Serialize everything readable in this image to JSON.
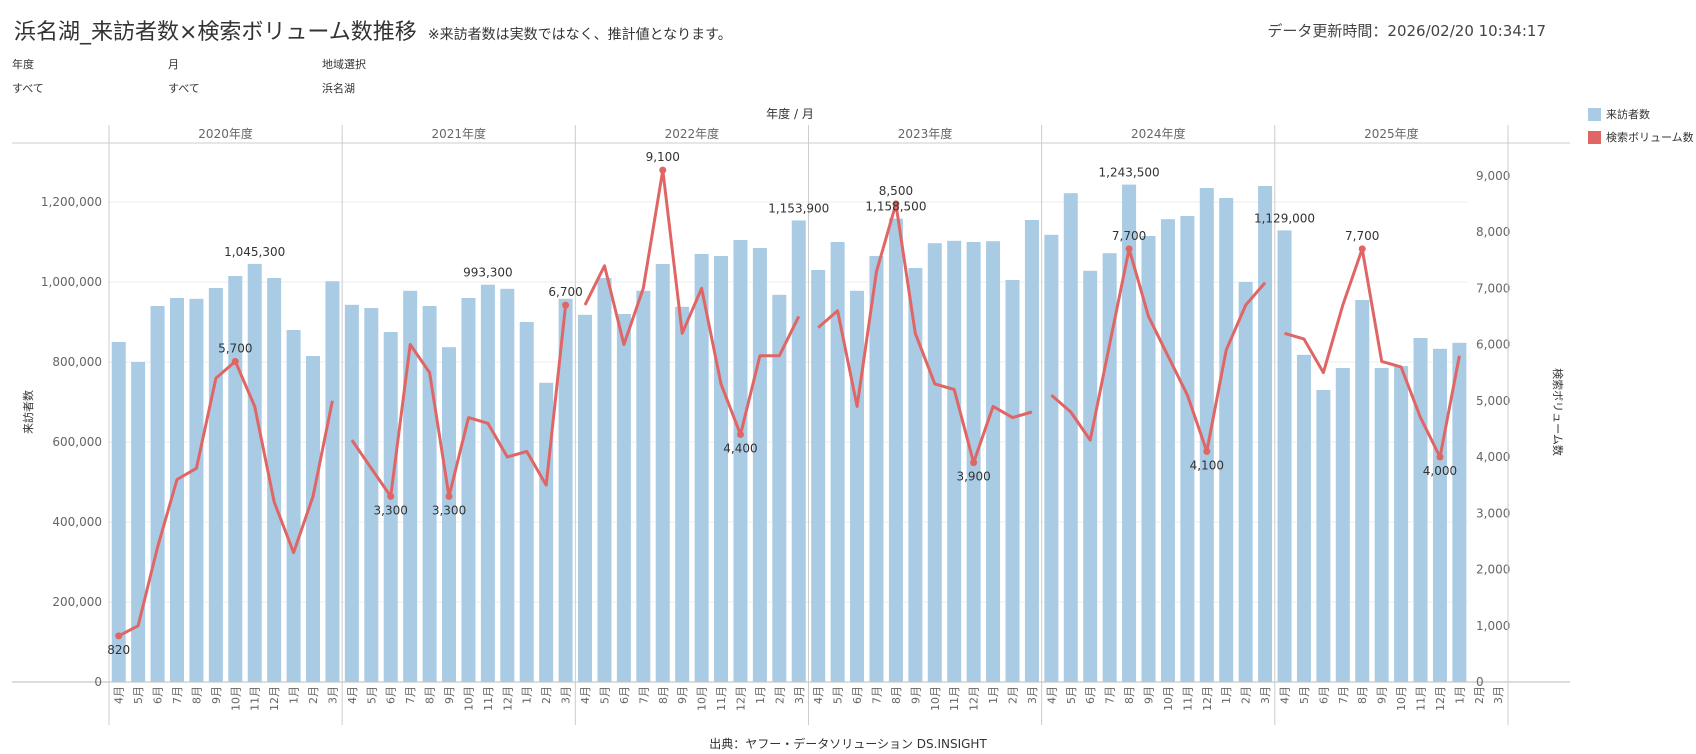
{
  "header": {
    "title": "浜名湖_来訪者数×検索ボリューム数推移",
    "note": "※来訪者数は実数ではなく、推計値となります。",
    "updated_label": "データ更新時間：",
    "updated_value": "2026/02/20 10:34:17"
  },
  "filters": [
    {
      "label": "年度",
      "value": "すべて"
    },
    {
      "label": "月",
      "value": "すべて"
    },
    {
      "label": "地域選択",
      "value": "浜名湖"
    }
  ],
  "legend": [
    {
      "label": "来訪者数",
      "color": "#a9cbe4"
    },
    {
      "label": "検索ボリューム数",
      "color": "#e06666"
    }
  ],
  "source": "出典：ヤフー・データソリューション DS.INSIGHT",
  "chart_data": {
    "type": "bar+line",
    "header_label": "年度 / 月",
    "groups": [
      "2020年度",
      "2021年度",
      "2022年度",
      "2023年度",
      "2024年度",
      "2025年度"
    ],
    "months": [
      "4月",
      "5月",
      "6月",
      "7月",
      "8月",
      "9月",
      "10月",
      "11月",
      "12月",
      "1月",
      "2月",
      "3月"
    ],
    "y_left": {
      "label": "来訪者数",
      "range": [
        0,
        1350000
      ],
      "ticks": [
        0,
        200000,
        400000,
        600000,
        800000,
        1000000,
        1200000
      ],
      "tick_labels": [
        "0",
        "200,000",
        "400,000",
        "600,000",
        "800,000",
        "1,000,000",
        "1,200,000"
      ]
    },
    "y_right": {
      "label": "検索ボリューム数",
      "range": [
        0,
        9600
      ],
      "ticks": [
        0,
        1000,
        2000,
        3000,
        4000,
        5000,
        6000,
        7000,
        8000,
        9000
      ],
      "tick_labels": [
        "0",
        "1,000",
        "2,000",
        "3,000",
        "4,000",
        "5,000",
        "6,000",
        "7,000",
        "8,000",
        "9,000"
      ]
    },
    "series": [
      {
        "name": "来訪者数",
        "type": "bar",
        "color": "#a9cbe4",
        "values": [
          [
            850000,
            800000,
            940000,
            960000,
            958000,
            985000,
            1015000,
            1045300,
            1010000,
            880000,
            815000,
            1002000
          ],
          [
            943000,
            935000,
            875000,
            978000,
            940000,
            837000,
            960000,
            993300,
            983000,
            900000,
            748000,
            958000
          ],
          [
            918000,
            1010000,
            920000,
            978000,
            1045000,
            938000,
            1070000,
            1065000,
            1105000,
            1085000,
            968000,
            1153900
          ],
          [
            1030000,
            1100000,
            978000,
            1065000,
            1158500,
            1035000,
            1097000,
            1103000,
            1100000,
            1102000,
            1005000,
            1155000
          ],
          [
            1118000,
            1222000,
            1028000,
            1072000,
            1243500,
            1115000,
            1157000,
            1165000,
            1235000,
            1210000,
            1000000,
            1240000
          ],
          [
            1129000,
            818000,
            730000,
            785000,
            955000,
            785000,
            790000,
            860000,
            833000,
            848000,
            null,
            null
          ]
        ]
      },
      {
        "name": "検索ボリューム数",
        "type": "line",
        "color": "#e06666",
        "values": [
          [
            820,
            1000,
            2400,
            3600,
            3800,
            5400,
            5700,
            4900,
            3200,
            2300,
            3300,
            5000
          ],
          [
            4300,
            3800,
            3300,
            6000,
            5500,
            3300,
            4700,
            4600,
            4000,
            4100,
            3500,
            6700
          ],
          [
            6700,
            7400,
            6000,
            7000,
            9100,
            6200,
            7000,
            5300,
            4400,
            5800,
            5800,
            6500
          ],
          [
            6300,
            6600,
            4900,
            7300,
            8500,
            6200,
            5300,
            5200,
            3900,
            4900,
            4700,
            4800
          ],
          [
            5100,
            4800,
            4300,
            6000,
            7700,
            6500,
            5800,
            5100,
            4100,
            5900,
            6700,
            7100
          ],
          [
            6200,
            6100,
            5500,
            6700,
            7700,
            5700,
            5600,
            4700,
            4000,
            5800,
            null,
            null
          ]
        ]
      }
    ],
    "bar_labels": [
      {
        "group": 0,
        "month": 7,
        "text": "1,045,300"
      },
      {
        "group": 1,
        "month": 7,
        "text": "993,300"
      },
      {
        "group": 2,
        "month": 11,
        "text": "1,153,900"
      },
      {
        "group": 3,
        "month": 4,
        "text": "1,158,500"
      },
      {
        "group": 4,
        "month": 4,
        "text": "1,243,500"
      },
      {
        "group": 5,
        "month": 0,
        "text": "1,129,000"
      }
    ],
    "line_labels": [
      {
        "group": 0,
        "month": 0,
        "text": "820",
        "pos": "below"
      },
      {
        "group": 0,
        "month": 6,
        "text": "5,700",
        "pos": "above"
      },
      {
        "group": 1,
        "month": 2,
        "text": "3,300",
        "pos": "below"
      },
      {
        "group": 1,
        "month": 5,
        "text": "3,300",
        "pos": "below"
      },
      {
        "group": 1,
        "month": 11,
        "text": "6,700",
        "pos": "above"
      },
      {
        "group": 2,
        "month": 4,
        "text": "9,100",
        "pos": "above"
      },
      {
        "group": 2,
        "month": 8,
        "text": "4,400",
        "pos": "below"
      },
      {
        "group": 3,
        "month": 4,
        "text": "8,500",
        "pos": "above"
      },
      {
        "group": 3,
        "month": 8,
        "text": "3,900",
        "pos": "below"
      },
      {
        "group": 4,
        "month": 4,
        "text": "7,700",
        "pos": "above"
      },
      {
        "group": 4,
        "month": 8,
        "text": "4,100",
        "pos": "below"
      },
      {
        "group": 5,
        "month": 4,
        "text": "7,700",
        "pos": "above"
      },
      {
        "group": 5,
        "month": 8,
        "text": "4,000",
        "pos": "below"
      }
    ]
  }
}
